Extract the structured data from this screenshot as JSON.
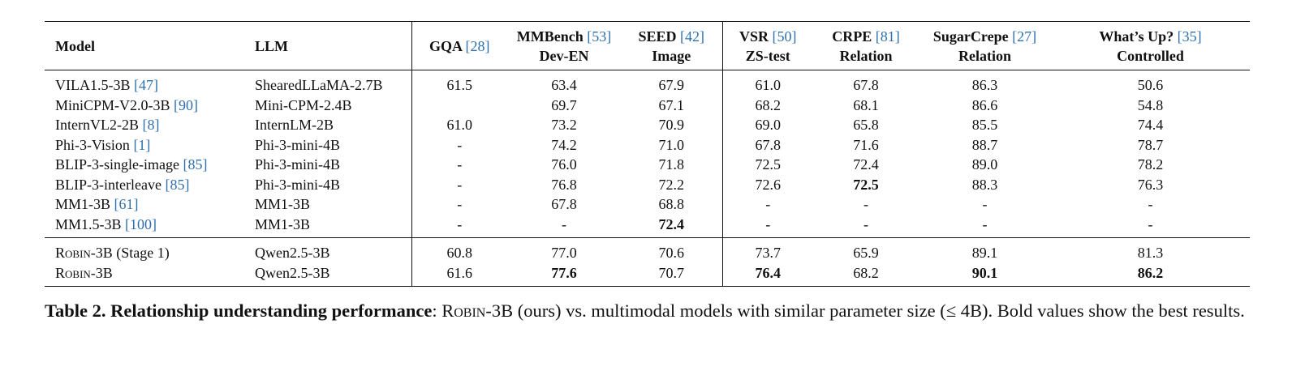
{
  "table": {
    "columns": [
      {
        "line1": "Model",
        "ref": "",
        "line2": ""
      },
      {
        "line1": "LLM",
        "ref": "",
        "line2": ""
      },
      {
        "line1": "GQA",
        "ref": "[28]",
        "line2": ""
      },
      {
        "line1": "MMBench",
        "ref": "[53]",
        "line2": "Dev-EN"
      },
      {
        "line1": "SEED",
        "ref": "[42]",
        "line2": "Image"
      },
      {
        "line1": "VSR",
        "ref": "[50]",
        "line2": "ZS-test"
      },
      {
        "line1": "CRPE",
        "ref": "[81]",
        "line2": "Relation"
      },
      {
        "line1": "SugarCrepe",
        "ref": "[27]",
        "line2": "Relation"
      },
      {
        "line1": "What’s Up?",
        "ref": "[35]",
        "line2": "Controlled"
      }
    ],
    "group1": [
      {
        "model": "VILA1.5-3B",
        "ref": "[47]",
        "llm": "ShearedLLaMA-2.7B",
        "vals": [
          "61.5",
          "63.4",
          "67.9",
          "61.0",
          "67.8",
          "86.3",
          "50.6"
        ]
      },
      {
        "model": "MiniCPM-V2.0-3B",
        "ref": "[90]",
        "llm": "Mini-CPM-2.4B",
        "vals": [
          "",
          "69.7",
          "67.1",
          "68.2",
          "68.1",
          "86.6",
          "54.8"
        ]
      },
      {
        "model": "InternVL2-2B",
        "ref": "[8]",
        "llm": "InternLM-2B",
        "vals": [
          "61.0",
          "73.2",
          "70.9",
          "69.0",
          "65.8",
          "85.5",
          "74.4"
        ]
      },
      {
        "model": "Phi-3-Vision",
        "ref": "[1]",
        "llm": "Phi-3-mini-4B",
        "vals": [
          "-",
          "74.2",
          "71.0",
          "67.8",
          "71.6",
          "88.7",
          "78.7"
        ]
      },
      {
        "model": "BLIP-3-single-image",
        "ref": "[85]",
        "llm": "Phi-3-mini-4B",
        "vals": [
          "-",
          "76.0",
          "71.8",
          "72.5",
          "72.4",
          "89.0",
          "78.2"
        ]
      },
      {
        "model": "BLIP-3-interleave",
        "ref": "[85]",
        "llm": "Phi-3-mini-4B",
        "vals": [
          "-",
          "76.8",
          "72.2",
          "72.6",
          "72.5",
          "88.3",
          "76.3"
        ]
      },
      {
        "model": "MM1-3B",
        "ref": "[61]",
        "llm": "MM1-3B",
        "vals": [
          "-",
          "67.8",
          "68.8",
          "-",
          "-",
          "-",
          "-"
        ]
      },
      {
        "model": "MM1.5-3B",
        "ref": "[100]",
        "llm": "MM1-3B",
        "vals": [
          "-",
          "-",
          "72.4",
          "-",
          "-",
          "-",
          "-"
        ]
      }
    ],
    "group2": [
      {
        "model_sc": "Robin",
        "model_rest": "-3B (Stage 1)",
        "llm": "Qwen2.5-3B",
        "vals": [
          "60.8",
          "77.0",
          "70.6",
          "73.7",
          "65.9",
          "89.1",
          "81.3"
        ]
      },
      {
        "model_sc": "Robin",
        "model_rest": "-3B",
        "llm": "Qwen2.5-3B",
        "vals": [
          "61.6",
          "77.6",
          "70.7",
          "76.4",
          "68.2",
          "90.1",
          "86.2"
        ]
      }
    ]
  },
  "caption": {
    "label": "Table 2.",
    "title": "Relationship understanding performance",
    "sep": ": ",
    "name_sc": "Robin",
    "text": "-3B (ours) vs. multimodal models with similar parameter size (≤ 4B). Bold values show the best results."
  }
}
